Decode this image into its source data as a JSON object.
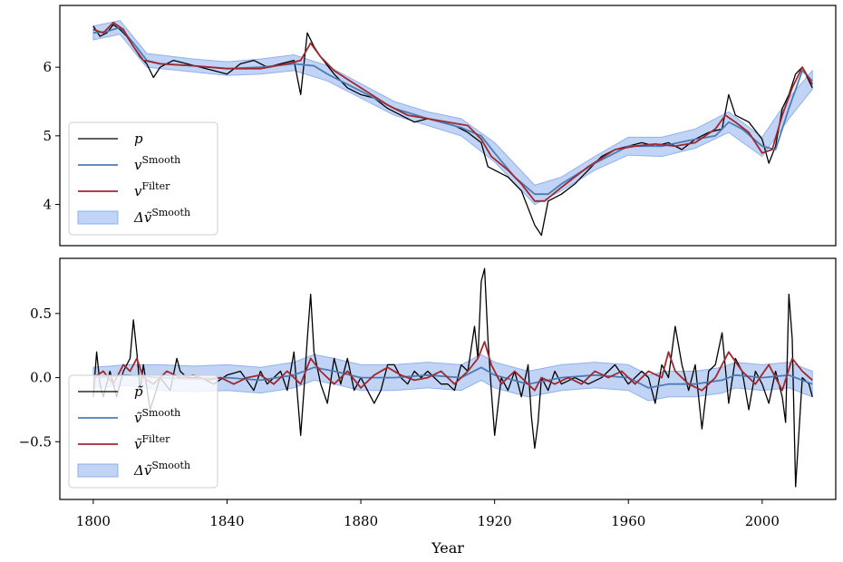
{
  "chart_data": [
    {
      "type": "line",
      "title": "",
      "xlabel": "",
      "ylabel": "",
      "xlim": [
        1790,
        2022
      ],
      "ylim": [
        3.4,
        6.9
      ],
      "yticks": [
        4,
        5,
        6
      ],
      "ytick_labels": [
        "4",
        "5",
        "6"
      ],
      "grid": false,
      "legend_position": "bottom-left",
      "legend": [
        {
          "key": "p",
          "label": "p",
          "sup": ""
        },
        {
          "key": "v_smooth",
          "label": "v",
          "sup": "Smooth"
        },
        {
          "key": "v_filter",
          "label": "v",
          "sup": "Filter"
        },
        {
          "key": "band",
          "label": "Δṽ",
          "sup": "Smooth"
        }
      ],
      "series": [
        {
          "key": "p",
          "color": "#000000",
          "x": [
            1800,
            1802,
            1804,
            1806,
            1808,
            1810,
            1812,
            1814,
            1816,
            1818,
            1820,
            1824,
            1828,
            1832,
            1836,
            1840,
            1844,
            1848,
            1852,
            1856,
            1860,
            1862,
            1864,
            1866,
            1868,
            1872,
            1876,
            1880,
            1884,
            1888,
            1892,
            1896,
            1900,
            1904,
            1908,
            1912,
            1916,
            1918,
            1920,
            1924,
            1928,
            1932,
            1934,
            1936,
            1940,
            1944,
            1948,
            1952,
            1956,
            1960,
            1964,
            1968,
            1972,
            1976,
            1980,
            1984,
            1988,
            1990,
            1992,
            1996,
            2000,
            2002,
            2004,
            2006,
            2008,
            2010,
            2012,
            2014,
            2015
          ],
          "y": [
            6.6,
            6.45,
            6.5,
            6.62,
            6.55,
            6.45,
            6.3,
            6.15,
            6.05,
            5.85,
            6.0,
            6.1,
            6.05,
            6.0,
            5.95,
            5.9,
            6.05,
            6.1,
            6.0,
            6.05,
            6.1,
            5.6,
            6.5,
            6.3,
            6.15,
            5.9,
            5.7,
            5.6,
            5.55,
            5.4,
            5.3,
            5.2,
            5.25,
            5.2,
            5.15,
            5.05,
            4.9,
            4.55,
            4.5,
            4.4,
            4.2,
            3.7,
            3.55,
            4.05,
            4.15,
            4.3,
            4.5,
            4.7,
            4.8,
            4.85,
            4.9,
            4.85,
            4.9,
            4.8,
            4.95,
            5.05,
            5.1,
            5.6,
            5.3,
            5.2,
            4.95,
            4.6,
            4.85,
            5.4,
            5.6,
            5.9,
            6.0,
            5.8,
            5.7
          ]
        },
        {
          "key": "v_smooth",
          "color": "#4a7db5",
          "x": [
            1800,
            1804,
            1808,
            1812,
            1816,
            1820,
            1830,
            1840,
            1850,
            1860,
            1866,
            1870,
            1880,
            1890,
            1900,
            1910,
            1916,
            1920,
            1926,
            1932,
            1936,
            1940,
            1950,
            1960,
            1970,
            1980,
            1986,
            1990,
            1994,
            2000,
            2004,
            2008,
            2012,
            2015
          ],
          "y": [
            6.5,
            6.52,
            6.58,
            6.35,
            6.1,
            6.05,
            6.02,
            5.98,
            6.0,
            6.05,
            6.02,
            5.9,
            5.65,
            5.4,
            5.25,
            5.12,
            5.0,
            4.75,
            4.4,
            4.15,
            4.15,
            4.3,
            4.6,
            4.85,
            4.85,
            4.95,
            5.0,
            5.2,
            5.1,
            4.85,
            4.8,
            5.4,
            5.95,
            5.8
          ]
        },
        {
          "key": "v_filter",
          "color": "#a02830",
          "x": [
            1800,
            1803,
            1806,
            1809,
            1812,
            1815,
            1820,
            1830,
            1840,
            1850,
            1858,
            1862,
            1865,
            1868,
            1872,
            1880,
            1888,
            1894,
            1900,
            1906,
            1912,
            1916,
            1919,
            1924,
            1928,
            1932,
            1935,
            1940,
            1948,
            1956,
            1962,
            1968,
            1974,
            1980,
            1986,
            1989,
            1992,
            1996,
            2000,
            2003,
            2006,
            2009,
            2012,
            2015
          ],
          "y": [
            6.55,
            6.5,
            6.65,
            6.55,
            6.3,
            6.1,
            6.05,
            6.02,
            5.98,
            5.98,
            6.05,
            6.1,
            6.35,
            6.15,
            5.95,
            5.7,
            5.45,
            5.3,
            5.25,
            5.2,
            5.15,
            4.95,
            4.7,
            4.5,
            4.3,
            4.05,
            4.05,
            4.25,
            4.55,
            4.8,
            4.85,
            4.88,
            4.85,
            4.9,
            5.1,
            5.3,
            5.2,
            5.05,
            4.75,
            4.8,
            5.3,
            5.7,
            6.0,
            5.75
          ]
        }
      ],
      "band": {
        "color": "#8fb1ec",
        "x": [
          1800,
          1808,
          1816,
          1830,
          1840,
          1850,
          1860,
          1870,
          1880,
          1890,
          1900,
          1910,
          1920,
          1932,
          1940,
          1950,
          1960,
          1970,
          1980,
          1990,
          2000,
          2008,
          2015
        ],
        "lower": [
          6.4,
          6.48,
          6.0,
          5.93,
          5.88,
          5.9,
          5.95,
          5.8,
          5.55,
          5.3,
          5.15,
          5.0,
          4.62,
          4.0,
          4.2,
          4.5,
          4.72,
          4.7,
          4.82,
          5.05,
          4.7,
          5.25,
          5.68
        ],
        "upper": [
          6.6,
          6.68,
          6.2,
          6.12,
          6.08,
          6.12,
          6.18,
          6.02,
          5.76,
          5.5,
          5.35,
          5.25,
          4.9,
          4.28,
          4.4,
          4.7,
          4.98,
          4.98,
          5.1,
          5.35,
          4.98,
          5.55,
          5.95
        ]
      }
    },
    {
      "type": "line",
      "title": "",
      "xlabel": "Year",
      "ylabel": "",
      "xlim": [
        1790,
        2022
      ],
      "ylim": [
        -0.95,
        0.93
      ],
      "yticks": [
        -0.5,
        0.0,
        0.5
      ],
      "ytick_labels": [
        "−0.5",
        "0.0",
        "0.5"
      ],
      "xticks": [
        1800,
        1840,
        1880,
        1920,
        1960,
        2000
      ],
      "xtick_labels": [
        "1800",
        "1840",
        "1880",
        "1920",
        "1960",
        "2000"
      ],
      "grid": false,
      "legend_position": "bottom-left",
      "legend": [
        {
          "key": "p",
          "label": "p̃",
          "sup": ""
        },
        {
          "key": "v_smooth",
          "label": "ṽ",
          "sup": "Smooth"
        },
        {
          "key": "v_filter",
          "label": "ṽ",
          "sup": "Filter"
        },
        {
          "key": "band",
          "label": "Δṽ",
          "sup": "Smooth"
        }
      ],
      "series": [
        {
          "key": "p",
          "color": "#000000",
          "x": [
            1800,
            1801,
            1802,
            1803,
            1805,
            1807,
            1809,
            1811,
            1812,
            1813,
            1814,
            1815,
            1817,
            1820,
            1823,
            1825,
            1826,
            1828,
            1832,
            1836,
            1840,
            1844,
            1848,
            1850,
            1852,
            1854,
            1856,
            1858,
            1860,
            1862,
            1863,
            1864,
            1865,
            1866,
            1868,
            1870,
            1872,
            1874,
            1876,
            1878,
            1880,
            1882,
            1884,
            1886,
            1888,
            1890,
            1892,
            1894,
            1896,
            1898,
            1900,
            1902,
            1904,
            1906,
            1908,
            1910,
            1912,
            1914,
            1915,
            1916,
            1917,
            1918,
            1919,
            1920,
            1922,
            1924,
            1926,
            1928,
            1930,
            1931,
            1932,
            1933,
            1934,
            1936,
            1938,
            1940,
            1944,
            1948,
            1952,
            1956,
            1960,
            1964,
            1966,
            1968,
            1970,
            1972,
            1974,
            1976,
            1978,
            1980,
            1982,
            1984,
            1986,
            1988,
            1990,
            1992,
            1994,
            1996,
            1998,
            2000,
            2002,
            2004,
            2006,
            2007,
            2008,
            2009,
            2010,
            2012,
            2014,
            2015
          ],
          "y": [
            -0.15,
            0.2,
            -0.05,
            -0.15,
            0.05,
            -0.15,
            0.05,
            0.15,
            0.45,
            0.2,
            -0.1,
            0.1,
            -0.25,
            0.0,
            -0.1,
            0.15,
            0.05,
            0.0,
            0.0,
            -0.05,
            0.02,
            0.05,
            -0.1,
            0.05,
            -0.05,
            0.0,
            0.05,
            -0.1,
            0.2,
            -0.45,
            -0.1,
            0.3,
            0.65,
            0.2,
            -0.05,
            -0.2,
            0.15,
            -0.05,
            0.15,
            -0.1,
            0.0,
            -0.1,
            -0.2,
            -0.1,
            0.1,
            0.1,
            0.0,
            -0.05,
            0.05,
            0.0,
            0.05,
            0.0,
            -0.05,
            -0.05,
            -0.1,
            0.1,
            0.05,
            0.4,
            0.15,
            0.75,
            0.85,
            0.3,
            -0.1,
            -0.45,
            0.0,
            -0.1,
            0.05,
            -0.15,
            0.1,
            -0.3,
            -0.55,
            -0.35,
            0.0,
            -0.1,
            0.05,
            -0.05,
            0.0,
            -0.05,
            0.0,
            0.1,
            -0.05,
            0.05,
            0.0,
            -0.2,
            0.1,
            0.0,
            0.4,
            0.1,
            -0.1,
            0.1,
            -0.4,
            0.05,
            0.1,
            0.35,
            -0.2,
            0.15,
            0.05,
            -0.25,
            0.05,
            -0.05,
            -0.2,
            0.05,
            -0.15,
            -0.35,
            0.65,
            0.3,
            -0.85,
            0.0,
            -0.05,
            -0.15
          ]
        },
        {
          "key": "v_smooth",
          "color": "#4a7db5",
          "x": [
            1800,
            1810,
            1820,
            1830,
            1840,
            1850,
            1860,
            1866,
            1872,
            1880,
            1890,
            1900,
            1910,
            1916,
            1920,
            1930,
            1940,
            1950,
            1960,
            1966,
            1972,
            1980,
            1988,
            1992,
            2000,
            2008,
            2015
          ],
          "y": [
            0.0,
            0.02,
            0.0,
            -0.01,
            0.0,
            -0.02,
            0.02,
            0.08,
            0.05,
            0.0,
            0.0,
            0.02,
            0.0,
            0.08,
            0.02,
            -0.05,
            0.0,
            0.02,
            0.0,
            -0.08,
            -0.05,
            -0.05,
            -0.02,
            0.02,
            0.0,
            0.02,
            -0.05
          ]
        },
        {
          "key": "v_filter",
          "color": "#a02830",
          "x": [
            1800,
            1803,
            1806,
            1809,
            1811,
            1813,
            1815,
            1818,
            1822,
            1826,
            1830,
            1834,
            1838,
            1842,
            1846,
            1850,
            1854,
            1858,
            1862,
            1865,
            1868,
            1872,
            1876,
            1880,
            1884,
            1888,
            1892,
            1896,
            1900,
            1904,
            1908,
            1912,
            1915,
            1917,
            1919,
            1922,
            1926,
            1930,
            1932,
            1934,
            1938,
            1942,
            1946,
            1950,
            1954,
            1958,
            1962,
            1966,
            1970,
            1972,
            1974,
            1978,
            1982,
            1986,
            1990,
            1994,
            1998,
            2002,
            2006,
            2009,
            2012,
            2015
          ],
          "y": [
            0.0,
            0.05,
            -0.05,
            0.1,
            0.05,
            0.15,
            0.0,
            -0.05,
            0.05,
            0.0,
            0.02,
            -0.02,
            0.0,
            -0.05,
            0.0,
            0.02,
            -0.05,
            0.05,
            -0.05,
            0.15,
            0.05,
            -0.05,
            0.05,
            -0.08,
            0.02,
            0.08,
            0.02,
            -0.02,
            0.0,
            0.05,
            -0.05,
            0.05,
            0.15,
            0.28,
            0.1,
            -0.05,
            0.05,
            -0.05,
            -0.1,
            0.0,
            -0.05,
            0.0,
            -0.05,
            0.05,
            0.0,
            0.05,
            -0.05,
            0.05,
            0.0,
            0.2,
            0.05,
            -0.05,
            -0.1,
            0.0,
            0.2,
            0.05,
            -0.05,
            0.1,
            -0.1,
            0.15,
            0.05,
            -0.02
          ]
        }
      ],
      "band": {
        "color": "#8fb1ec",
        "x": [
          1800,
          1810,
          1820,
          1830,
          1840,
          1850,
          1860,
          1866,
          1872,
          1880,
          1890,
          1900,
          1910,
          1916,
          1920,
          1930,
          1940,
          1950,
          1960,
          1966,
          1972,
          1980,
          1988,
          1992,
          2000,
          2008,
          2015
        ],
        "lower": [
          -0.08,
          -0.06,
          -0.1,
          -0.11,
          -0.1,
          -0.12,
          -0.08,
          -0.02,
          -0.05,
          -0.1,
          -0.1,
          -0.08,
          -0.1,
          -0.02,
          -0.08,
          -0.15,
          -0.1,
          -0.08,
          -0.1,
          -0.18,
          -0.15,
          -0.15,
          -0.12,
          -0.08,
          -0.1,
          -0.08,
          -0.15
        ],
        "upper": [
          0.08,
          0.1,
          0.1,
          0.09,
          0.1,
          0.08,
          0.12,
          0.18,
          0.15,
          0.1,
          0.1,
          0.12,
          0.1,
          0.18,
          0.12,
          0.05,
          0.1,
          0.12,
          0.1,
          0.02,
          0.05,
          0.05,
          0.08,
          0.12,
          0.1,
          0.12,
          0.05
        ]
      }
    }
  ]
}
